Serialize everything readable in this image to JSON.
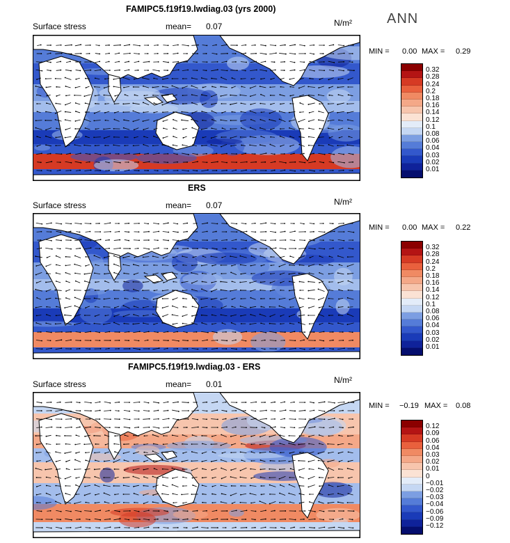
{
  "season": "ANN",
  "colors": {
    "warm": [
      "#8b0000",
      "#b41414",
      "#d63a24",
      "#e9603d",
      "#f08a63",
      "#f4a888",
      "#f7c5ad",
      "#fbe2d4"
    ],
    "cool": [
      "#e3ecf9",
      "#c5d7f3",
      "#a3bdec",
      "#7c9ee2",
      "#557cd8",
      "#3358cc",
      "#1a3bb8",
      "#0f229a",
      "#050e6e"
    ]
  },
  "panels": [
    {
      "title": "FAMIPC5.f19f19.lwdiag.03 (yrs 2000)",
      "variable": "Surface stress",
      "mean_label": "mean=",
      "mean_value": "0.07",
      "units": "N/m²",
      "min_label": "MIN =",
      "min_value": "0.00",
      "max_label": "MAX =",
      "max_value": "0.29",
      "levels": [
        "0.32",
        "0.28",
        "0.24",
        "0.2",
        "0.18",
        "0.16",
        "0.14",
        "0.12",
        "0.1",
        "0.08",
        "0.06",
        "0.04",
        "0.03",
        "0.02",
        "0.01"
      ],
      "style": "mag"
    },
    {
      "title": "ERS",
      "variable": "Surface stress",
      "mean_label": "mean=",
      "mean_value": "0.07",
      "units": "N/m²",
      "min_label": "MIN =",
      "min_value": "0.00",
      "max_label": "MAX =",
      "max_value": "0.22",
      "levels": [
        "0.32",
        "0.28",
        "0.24",
        "0.2",
        "0.18",
        "0.16",
        "0.14",
        "0.12",
        "0.1",
        "0.08",
        "0.06",
        "0.04",
        "0.03",
        "0.02",
        "0.01"
      ],
      "style": "mag"
    },
    {
      "title": "FAMIPC5.f19f19.lwdiag.03 - ERS",
      "variable": "Surface stress",
      "mean_label": "mean=",
      "mean_value": "0.01",
      "units": "N/m²",
      "min_label": "MIN =",
      "min_value": "−0.19",
      "max_label": "MAX =",
      "max_value": "0.08",
      "levels": [
        "0.12",
        "0.09",
        "0.06",
        "0.04",
        "0.03",
        "0.02",
        "0.01",
        "0",
        "−0.01",
        "−0.02",
        "−0.03",
        "−0.04",
        "−0.06",
        "−0.09",
        "−0.12"
      ],
      "style": "diff"
    }
  ]
}
